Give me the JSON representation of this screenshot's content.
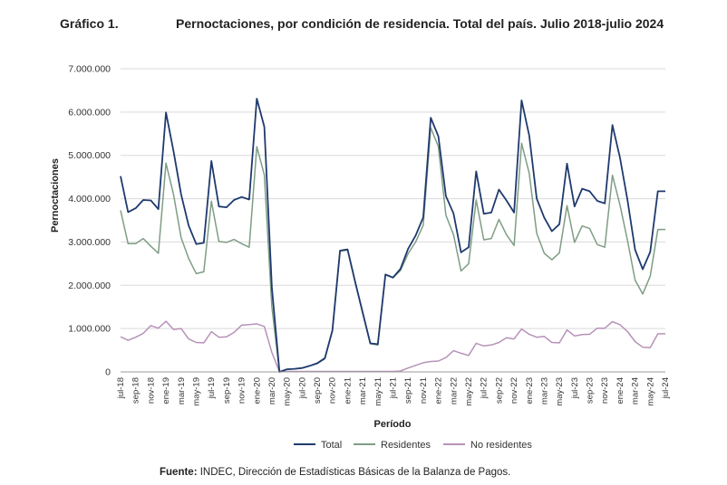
{
  "header": {
    "figure_label": "Gráfico 1.",
    "title": "Pernoctaciones, por condición de residencia. Total del país. Julio 2018-julio 2024"
  },
  "source": {
    "label": "Fuente:",
    "text": "INDEC, Dirección de Estadísticas Básicas de la Balanza de Pagos."
  },
  "chart_data": {
    "type": "line",
    "title": "Pernoctaciones, por condición de residencia. Total del país. Julio 2018-julio 2024",
    "xlabel": "Período",
    "ylabel": "Pernoctaciones",
    "ylim": [
      0,
      7000000
    ],
    "yticks": [
      0,
      1000000,
      2000000,
      3000000,
      4000000,
      5000000,
      6000000,
      7000000
    ],
    "ytick_labels": [
      "0",
      "1.000.000",
      "2.000.000",
      "3.000.000",
      "4.000.000",
      "5.000.000",
      "6.000.000",
      "7.000.000"
    ],
    "grid": "horizontal",
    "legend_position": "bottom",
    "x": [
      "jul-18",
      "ago-18",
      "sep-18",
      "oct-18",
      "nov-18",
      "dic-18",
      "ene-19",
      "feb-19",
      "mar-19",
      "abr-19",
      "may-19",
      "jun-19",
      "jul-19",
      "ago-19",
      "sep-19",
      "oct-19",
      "nov-19",
      "dic-19",
      "ene-20",
      "feb-20",
      "mar-20",
      "abr-20",
      "may-20",
      "jun-20",
      "jul-20",
      "ago-20",
      "sep-20",
      "oct-20",
      "nov-20",
      "dic-20",
      "ene-21",
      "feb-21",
      "mar-21",
      "abr-21",
      "may-21",
      "jun-21",
      "jul-21",
      "ago-21",
      "sep-21",
      "oct-21",
      "nov-21",
      "dic-21",
      "ene-22",
      "feb-22",
      "mar-22",
      "abr-22",
      "may-22",
      "jun-22",
      "jul-22",
      "ago-22",
      "sep-22",
      "oct-22",
      "nov-22",
      "dic-22",
      "ene-23",
      "feb-23",
      "mar-23",
      "abr-23",
      "may-23",
      "jun-23",
      "jul-23",
      "ago-23",
      "sep-23",
      "oct-23",
      "nov-23",
      "dic-23",
      "ene-24",
      "feb-24",
      "mar-24",
      "abr-24",
      "may-24",
      "jun-24",
      "jul-24"
    ],
    "xtick_labels": [
      "jul-18",
      "sep-18",
      "nov-18",
      "ene-19",
      "mar-19",
      "may-19",
      "jul-19",
      "sep-19",
      "nov-19",
      "ene-20",
      "mar-20",
      "may-20",
      "jul-20",
      "sep-20",
      "nov-20",
      "ene-21",
      "mar-21",
      "may-21",
      "jul-21",
      "sep-21",
      "nov-21",
      "ene-22",
      "mar-22",
      "may-22",
      "jul-22",
      "sep-22",
      "nov-22",
      "ene-23",
      "mar-23",
      "may-23",
      "jul-23",
      "sep-23",
      "nov-23",
      "ene-24",
      "mar-24",
      "may-24",
      "jul-24"
    ],
    "series": [
      {
        "name": "Total",
        "color": "#1f3a6e",
        "values": [
          4520000,
          3690000,
          3780000,
          3970000,
          3960000,
          3760000,
          5990000,
          5100000,
          4100000,
          3380000,
          2950000,
          2980000,
          4870000,
          3820000,
          3800000,
          3970000,
          4040000,
          3980000,
          6310000,
          5660000,
          1950000,
          0,
          60000,
          70000,
          90000,
          140000,
          200000,
          320000,
          960000,
          2800000,
          2830000,
          2080000,
          1370000,
          660000,
          640000,
          2250000,
          2180000,
          2380000,
          2840000,
          3150000,
          3570000,
          5870000,
          5440000,
          4060000,
          3660000,
          2760000,
          2880000,
          4630000,
          3650000,
          3680000,
          4210000,
          3960000,
          3680000,
          6270000,
          5460000,
          4000000,
          3560000,
          3250000,
          3410000,
          4810000,
          3820000,
          4230000,
          4170000,
          3950000,
          3890000,
          5700000,
          4950000,
          3960000,
          2820000,
          2370000,
          2770000,
          4170000,
          4170000
        ]
      },
      {
        "name": "Residentes",
        "color": "#7f9d85",
        "values": [
          3730000,
          2960000,
          2960000,
          3080000,
          2900000,
          2740000,
          4820000,
          4100000,
          3100000,
          2620000,
          2270000,
          2310000,
          3940000,
          3010000,
          2990000,
          3060000,
          2960000,
          2880000,
          5200000,
          4550000,
          1500000,
          0,
          60000,
          70000,
          90000,
          140000,
          190000,
          300000,
          950000,
          2790000,
          2810000,
          2070000,
          1360000,
          650000,
          620000,
          2240000,
          2170000,
          2340000,
          2730000,
          3000000,
          3390000,
          5640000,
          5200000,
          3620000,
          3170000,
          2330000,
          2500000,
          3970000,
          3050000,
          3080000,
          3520000,
          3170000,
          2920000,
          5280000,
          4590000,
          3200000,
          2740000,
          2590000,
          2750000,
          3840000,
          2990000,
          3370000,
          3310000,
          2940000,
          2880000,
          4540000,
          3860000,
          3030000,
          2120000,
          1800000,
          2210000,
          3290000,
          3290000
        ]
      },
      {
        "name": "No residentes",
        "color": "#b792b8",
        "values": [
          810000,
          730000,
          800000,
          890000,
          1070000,
          1010000,
          1170000,
          980000,
          1000000,
          760000,
          680000,
          670000,
          930000,
          800000,
          810000,
          910000,
          1080000,
          1090000,
          1110000,
          1050000,
          450000,
          0,
          10000,
          10000,
          10000,
          10000,
          10000,
          10000,
          10000,
          10000,
          10000,
          10000,
          10000,
          10000,
          10000,
          10000,
          10000,
          20000,
          90000,
          150000,
          210000,
          240000,
          250000,
          330000,
          490000,
          430000,
          380000,
          660000,
          600000,
          620000,
          680000,
          790000,
          760000,
          990000,
          870000,
          800000,
          820000,
          680000,
          670000,
          970000,
          830000,
          860000,
          870000,
          1010000,
          1010000,
          1160000,
          1090000,
          930000,
          700000,
          570000,
          560000,
          880000,
          880000
        ]
      }
    ]
  }
}
